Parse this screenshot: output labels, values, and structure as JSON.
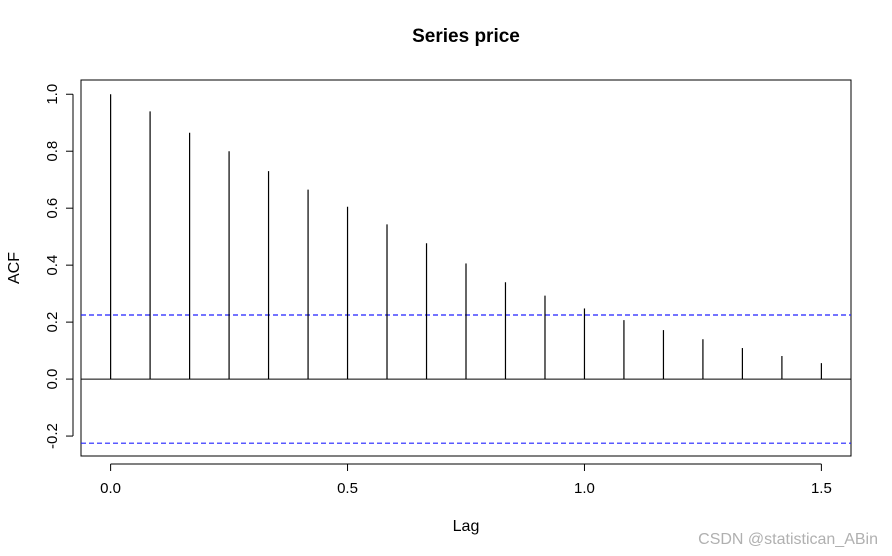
{
  "chart_data": {
    "type": "bar",
    "title": "Series  price",
    "xlabel": "Lag",
    "ylabel": "ACF",
    "xlim": [
      -0.0625,
      1.5625
    ],
    "ylim": [
      -0.27,
      1.05
    ],
    "x_ticks": [
      0.0,
      0.5,
      1.0,
      1.5
    ],
    "x_tick_labels": [
      "0.0",
      "0.5",
      "1.0",
      "1.5"
    ],
    "y_ticks": [
      -0.2,
      0.0,
      0.2,
      0.4,
      0.6,
      0.8,
      1.0
    ],
    "y_tick_labels": [
      "-0.2",
      "0.0",
      "0.2",
      "0.4",
      "0.6",
      "0.8",
      "1.0"
    ],
    "lags": [
      0.0,
      0.0833,
      0.1667,
      0.25,
      0.3333,
      0.4167,
      0.5,
      0.5833,
      0.6667,
      0.75,
      0.8333,
      0.9167,
      1.0,
      1.0833,
      1.1667,
      1.25,
      1.3333,
      1.4167,
      1.5
    ],
    "acf": [
      1.0,
      0.94,
      0.865,
      0.8,
      0.73,
      0.665,
      0.605,
      0.543,
      0.477,
      0.406,
      0.34,
      0.293,
      0.248,
      0.207,
      0.172,
      0.14,
      0.109,
      0.081,
      0.056
    ],
    "confidence_limit": 0.225,
    "confidence_line_color": "#2222ff",
    "bar_color": "#000000",
    "grid": false
  },
  "watermark": "CSDN @statistican_ABin"
}
